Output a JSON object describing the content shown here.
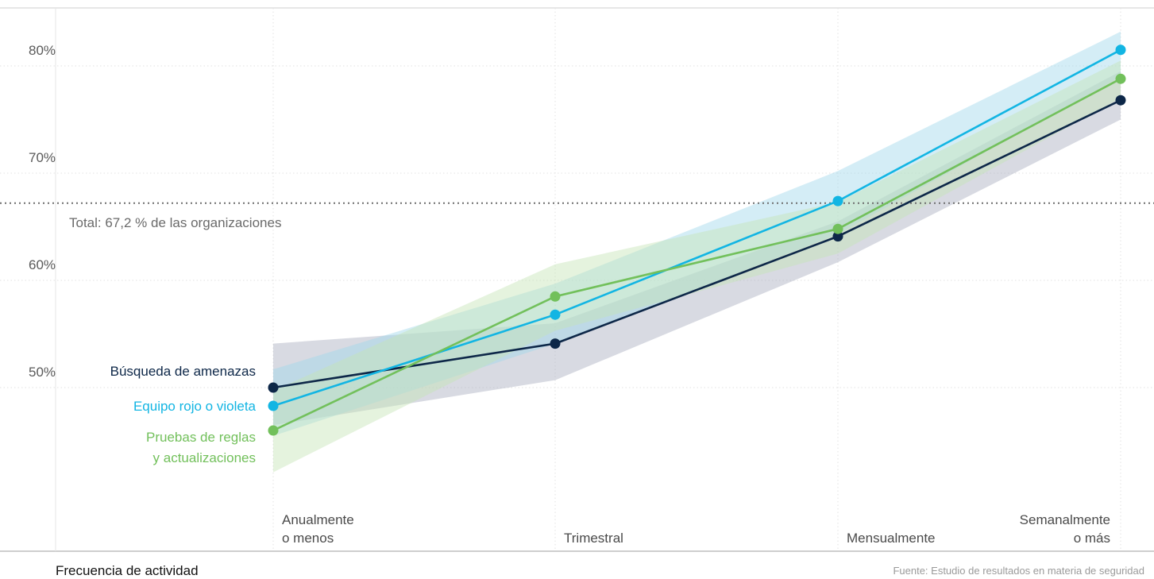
{
  "chart_data": {
    "type": "line",
    "categories": [
      [
        "Anualmente",
        "o menos"
      ],
      [
        "Trimestral"
      ],
      [
        "Mensualmente"
      ],
      [
        "Semanalmente",
        "o más"
      ]
    ],
    "y_ticks": [
      "50%",
      "60%",
      "70%",
      "80%"
    ],
    "ylim": [
      0.35,
      0.885
    ],
    "grid": true,
    "reference_line": {
      "value": 0.672,
      "label": "Total: 67,2 % de las organizaciones"
    },
    "series": [
      {
        "name": "Búsqueda de amenazas",
        "label_lines": [
          "Búsqueda de amenazas"
        ],
        "color": "#0d2748",
        "band_color": "#a8aebf",
        "values": [
          0.5,
          0.541,
          0.641,
          0.768
        ],
        "lower": [
          0.465,
          0.507,
          0.617,
          0.75
        ],
        "upper": [
          0.541,
          0.56,
          0.655,
          0.795
        ]
      },
      {
        "name": "Equipo rojo o violeta",
        "label_lines": [
          "Equipo rojo o violeta"
        ],
        "color": "#12b5e3",
        "band_color": "#9fd7ea",
        "values": [
          0.483,
          0.568,
          0.674,
          0.815
        ],
        "lower": [
          0.455,
          0.541,
          0.643,
          0.79
        ],
        "upper": [
          0.517,
          0.597,
          0.702,
          0.832
        ]
      },
      {
        "name": "Pruebas de reglas y actualizaciones",
        "label_lines": [
          "Pruebas de reglas",
          "y actualizaciones"
        ],
        "color": "#72c05b",
        "band_color": "#c6e4b5",
        "values": [
          0.46,
          0.585,
          0.648,
          0.788
        ],
        "lower": [
          0.421,
          0.553,
          0.625,
          0.77
        ],
        "upper": [
          0.497,
          0.615,
          0.673,
          0.805
        ]
      }
    ],
    "xlabel": "Frecuencia de actividad",
    "source": "Fuente: Estudio de resultados en materia de seguridad"
  }
}
